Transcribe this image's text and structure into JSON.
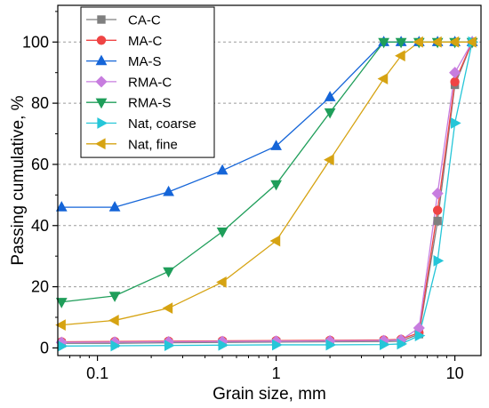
{
  "chart_data": {
    "type": "line",
    "xscale": "log",
    "xlabel": "Grain size, mm",
    "ylabel": "Passing cumulative, %",
    "xlim": [
      0.06,
      14
    ],
    "ylim": [
      -2.5,
      112
    ],
    "xticks": [
      0.1,
      1,
      10
    ],
    "xtick_labels": [
      "0.1",
      "1",
      "10"
    ],
    "yticks": [
      0,
      20,
      40,
      60,
      80,
      100
    ],
    "ytick_labels": [
      "0",
      "20",
      "40",
      "60",
      "80",
      "100"
    ],
    "grid": "horizontal dashed",
    "legend_position": "top-left",
    "series": [
      {
        "name": "CA-C",
        "color": "#7f7f7f",
        "marker": "square",
        "x": [
          0.063,
          0.125,
          0.25,
          0.5,
          1,
          2,
          4,
          5,
          6.3,
          8,
          10,
          12.5
        ],
        "y": [
          1.5,
          1.5,
          1.7,
          1.8,
          1.9,
          2.0,
          2.1,
          2.2,
          4.5,
          41.5,
          86,
          100
        ]
      },
      {
        "name": "MA-C",
        "color": "#ef4444",
        "marker": "circle",
        "x": [
          0.063,
          0.125,
          0.25,
          0.5,
          1,
          2,
          4,
          5,
          6.3,
          8,
          10,
          12.5
        ],
        "y": [
          2.0,
          2.1,
          2.2,
          2.3,
          2.4,
          2.5,
          2.6,
          2.8,
          5.0,
          45,
          87,
          100
        ]
      },
      {
        "name": "MA-S",
        "color": "#1565d8",
        "marker": "triangle-up",
        "x": [
          0.063,
          0.125,
          0.25,
          0.5,
          1,
          2,
          4,
          5,
          6.3,
          8,
          10,
          12.5
        ],
        "y": [
          46,
          46,
          51,
          58,
          66,
          82,
          100,
          100,
          100,
          100,
          100,
          100
        ]
      },
      {
        "name": "RMA-C",
        "color": "#c77ddf",
        "marker": "diamond",
        "x": [
          0.063,
          0.125,
          0.25,
          0.5,
          1,
          2,
          4,
          5,
          6.3,
          8,
          10,
          12.5
        ],
        "y": [
          1.8,
          1.9,
          2.0,
          2.1,
          2.2,
          2.3,
          2.4,
          2.6,
          6.5,
          50.5,
          90,
          100
        ]
      },
      {
        "name": "RMA-S",
        "color": "#1f9e5a",
        "marker": "triangle-down",
        "x": [
          0.063,
          0.125,
          0.25,
          0.5,
          1,
          2,
          4,
          5,
          6.3,
          8,
          10,
          12.5
        ],
        "y": [
          15,
          17,
          25,
          38,
          53.5,
          77,
          100,
          100,
          100,
          100,
          100,
          100
        ]
      },
      {
        "name": "Nat, coarse",
        "color": "#25c6d8",
        "marker": "triangle-right",
        "x": [
          0.063,
          0.125,
          0.25,
          0.5,
          1,
          2,
          4,
          5,
          6.3,
          8,
          10,
          12.5
        ],
        "y": [
          0.6,
          0.7,
          0.8,
          0.9,
          1.0,
          1.0,
          1.1,
          1.3,
          4.0,
          28.5,
          73.5,
          100
        ]
      },
      {
        "name": "Nat, fine",
        "color": "#d6a312",
        "marker": "triangle-left",
        "x": [
          0.063,
          0.125,
          0.25,
          0.5,
          1,
          2,
          4,
          5,
          6.3,
          8,
          10,
          12.5
        ],
        "y": [
          7.5,
          9,
          13,
          21.5,
          35,
          61.5,
          88,
          95.5,
          100,
          100,
          100,
          100
        ]
      }
    ]
  }
}
